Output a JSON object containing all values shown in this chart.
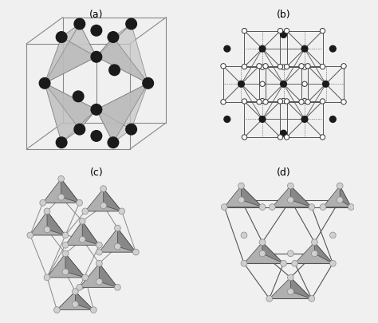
{
  "panel_labels": [
    "(a)",
    "(b)",
    "(c)",
    "(d)"
  ],
  "bg_color": "#f0f0f0",
  "dark_atom_color": "#1a1a1a",
  "light_atom_color": "#d0d0d0",
  "tetra_face_light": "#c8c8c8",
  "tetra_face_dark": "#888888",
  "line_color": "#555555",
  "cube_line_color": "#777777"
}
